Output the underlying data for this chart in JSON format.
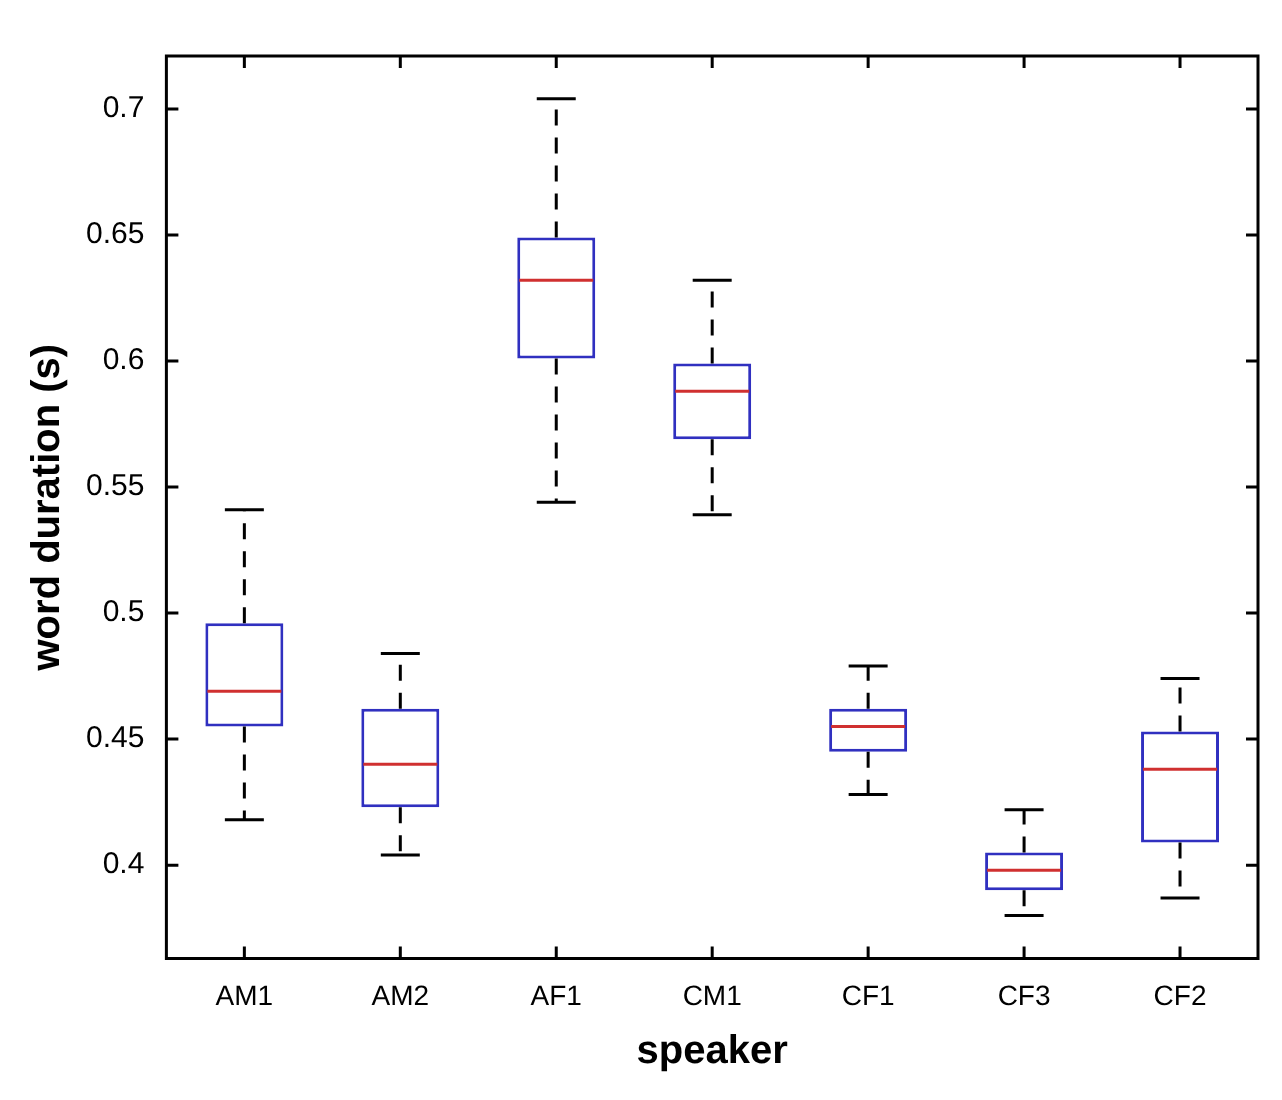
{
  "chart_data": {
    "type": "box",
    "xlabel": "speaker",
    "ylabel": "word duration (s)",
    "categories": [
      "AM1",
      "AM2",
      "AF1",
      "CM1",
      "CF1",
      "CF3",
      "CF2"
    ],
    "series": [
      {
        "color": "#3030c0",
        "boxes": [
          {
            "low": 0.418,
            "q1": 0.455,
            "median": 0.469,
            "q3": 0.496,
            "high": 0.541
          },
          {
            "low": 0.404,
            "q1": 0.423,
            "median": 0.44,
            "q3": 0.462,
            "high": 0.484
          },
          {
            "low": 0.544,
            "q1": 0.601,
            "median": 0.632,
            "q3": 0.649,
            "high": 0.704
          },
          {
            "low": 0.539,
            "q1": 0.569,
            "median": 0.588,
            "q3": 0.599,
            "high": 0.632
          },
          {
            "low": 0.428,
            "q1": 0.445,
            "median": 0.455,
            "q3": 0.462,
            "high": 0.479
          },
          {
            "low": 0.38,
            "q1": 0.39,
            "median": 0.398,
            "q3": 0.405,
            "high": 0.422
          },
          {
            "low": 0.387,
            "q1": 0.409,
            "median": 0.438,
            "q3": 0.453,
            "high": 0.474
          }
        ]
      }
    ],
    "ylim": [
      0.363,
      0.721
    ],
    "yticks": [
      0.4,
      0.45,
      0.5,
      0.55,
      0.6,
      0.65,
      0.7
    ]
  }
}
